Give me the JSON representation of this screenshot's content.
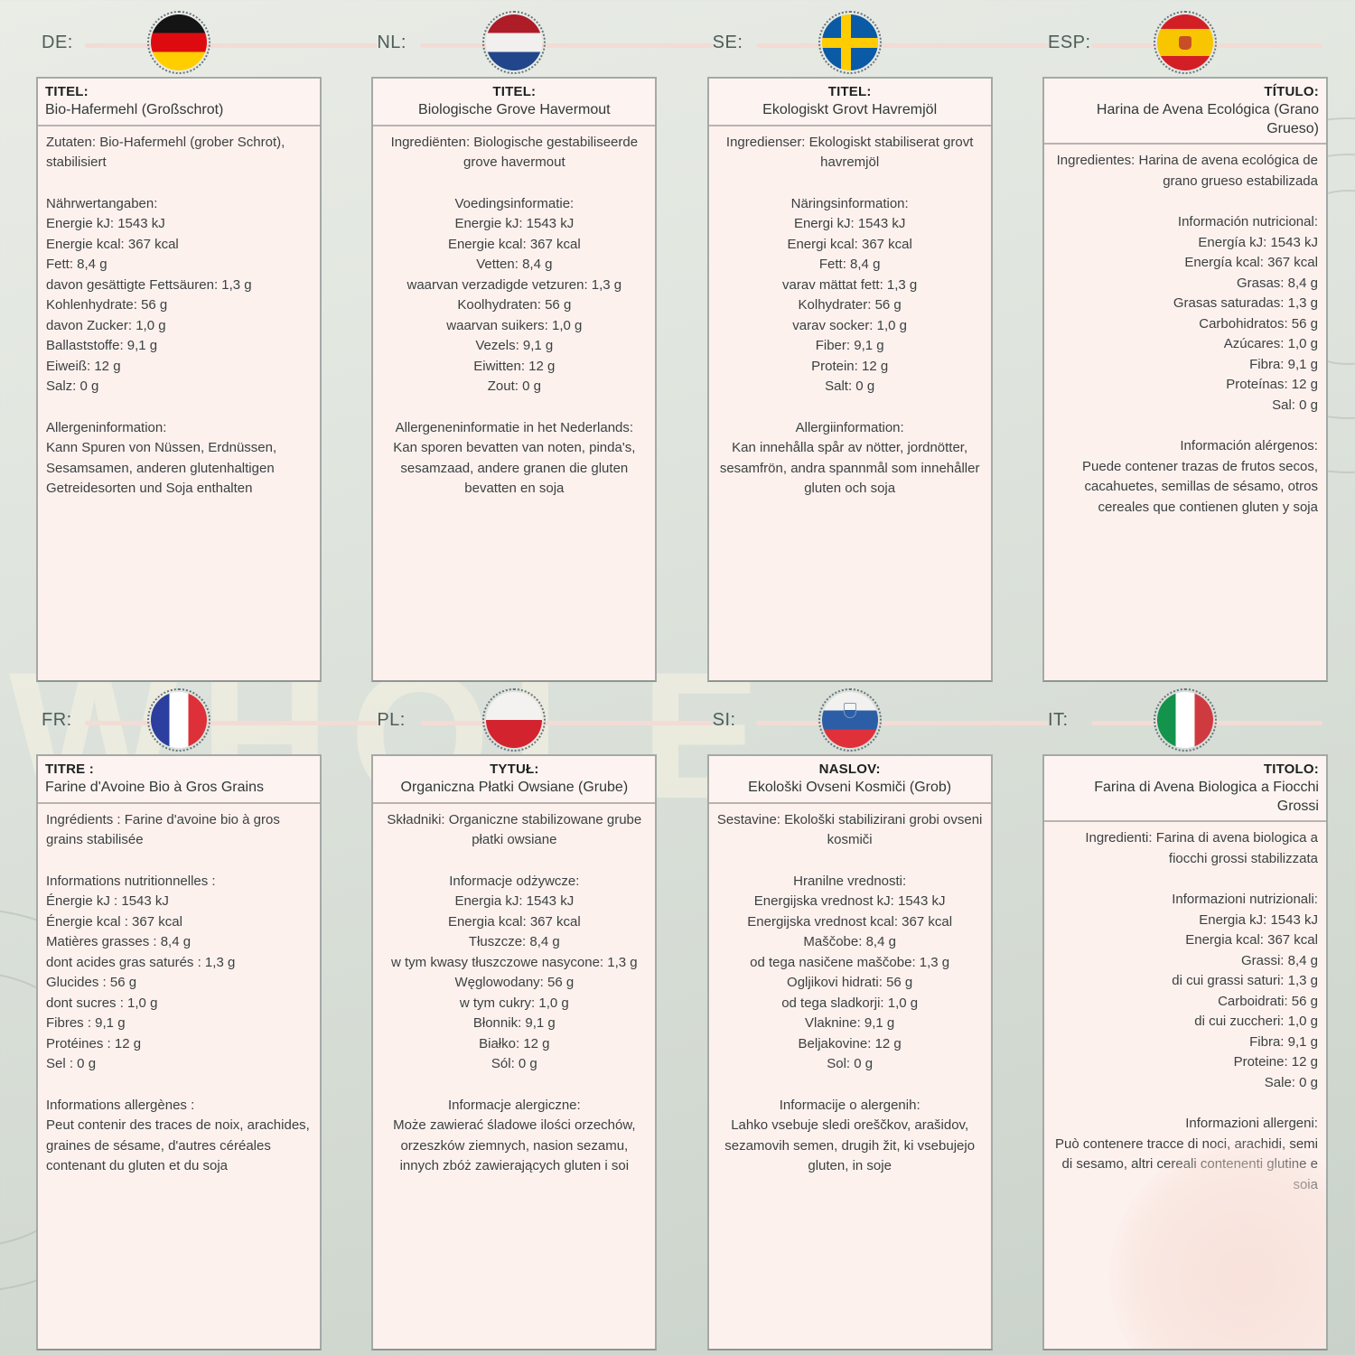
{
  "page": {
    "watermark": "WHOLE",
    "colors": {
      "background": "#dfe5de",
      "card_background": "#fdf1ee",
      "card_border": "#a4a9a6",
      "header_line": "#f2dcd5",
      "text": "#3b4141",
      "lang_label": "#4e5d59"
    }
  },
  "panels": [
    {
      "lang_label": "DE:",
      "flag_icon": "germany-flag",
      "align": "left",
      "title_label": "TITEL:",
      "title": "Bio-Hafermehl (Großschrot)",
      "ingredients": "Zutaten: Bio-Hafermehl (grober Schrot), stabilisiert",
      "nutrition_header": "Nährwertangaben:",
      "nutrition": [
        "Energie kJ: 1543 kJ",
        "Energie kcal: 367 kcal",
        "Fett: 8,4 g",
        "davon gesättigte Fettsäuren: 1,3 g",
        "Kohlenhydrate: 56 g",
        "davon Zucker: 1,0 g",
        "Ballaststoffe: 9,1 g",
        "Eiweiß: 12 g",
        "Salz: 0 g"
      ],
      "allergen_header": "Allergeninformation:",
      "allergens": "Kann Spuren von Nüssen, Erdnüssen, Sesamsamen, anderen glutenhaltigen Getreidesorten und Soja enthalten"
    },
    {
      "lang_label": "NL:",
      "flag_icon": "netherlands-flag",
      "align": "center",
      "title_label": "TITEL:",
      "title": "Biologische Grove Havermout",
      "ingredients": "Ingrediënten: Biologische gestabiliseerde grove havermout",
      "nutrition_header": "Voedingsinformatie:",
      "nutrition": [
        "Energie kJ: 1543 kJ",
        "Energie kcal: 367 kcal",
        "Vetten: 8,4 g",
        "waarvan verzadigde vetzuren: 1,3 g",
        "Koolhydraten: 56 g",
        "waarvan suikers: 1,0 g",
        "Vezels: 9,1 g",
        "Eiwitten: 12 g",
        "Zout: 0 g"
      ],
      "allergen_header": "Allergeneninformatie in het Nederlands:",
      "allergens": "Kan sporen bevatten van noten, pinda's, sesamzaad, andere granen die gluten bevatten en soja"
    },
    {
      "lang_label": "SE:",
      "flag_icon": "sweden-flag",
      "align": "center",
      "title_label": "TITEL:",
      "title": "Ekologiskt Grovt Havremjöl",
      "ingredients": "Ingredienser: Ekologiskt stabiliserat grovt havremjöl",
      "nutrition_header": "Näringsinformation:",
      "nutrition": [
        "Energi kJ: 1543 kJ",
        "Energi kcal: 367 kcal",
        "Fett: 8,4 g",
        "varav mättat fett: 1,3 g",
        "Kolhydrater: 56 g",
        "varav socker: 1,0 g",
        "Fiber: 9,1 g",
        "Protein: 12 g",
        "Salt: 0 g"
      ],
      "allergen_header": "Allergiinformation:",
      "allergens": "Kan innehålla spår av nötter, jordnötter, sesamfrön, andra spannmål som innehåller gluten och soja"
    },
    {
      "lang_label": "ESP:",
      "flag_icon": "spain-flag",
      "align": "right",
      "title_label": "TÍTULO:",
      "title": "Harina de Avena Ecológica (Grano Grueso)",
      "ingredients": "Ingredientes: Harina de avena ecológica de grano grueso estabilizada",
      "nutrition_header": "Información nutricional:",
      "nutrition": [
        "Energía kJ: 1543 kJ",
        "Energía kcal: 367 kcal",
        "Grasas: 8,4 g",
        "Grasas saturadas: 1,3 g",
        "Carbohidratos: 56 g",
        "Azúcares: 1,0 g",
        "Fibra: 9,1 g",
        "Proteínas: 12 g",
        "Sal: 0 g"
      ],
      "allergen_header": "Información alérgenos:",
      "allergens": "Puede contener trazas de frutos secos, cacahuetes, semillas de sésamo, otros cereales que contienen gluten y soja"
    },
    {
      "lang_label": "FR:",
      "flag_icon": "france-flag",
      "align": "left",
      "title_label": "TITRE :",
      "title": "Farine d'Avoine Bio à Gros Grains",
      "ingredients": "Ingrédients : Farine d'avoine bio à gros grains stabilisée",
      "nutrition_header": "Informations nutritionnelles :",
      "nutrition": [
        "Énergie kJ : 1543 kJ",
        "Énergie kcal : 367 kcal",
        "Matières grasses : 8,4 g",
        "dont acides gras saturés : 1,3 g",
        "Glucides : 56 g",
        "dont sucres : 1,0 g",
        "Fibres : 9,1 g",
        "Protéines : 12 g",
        "Sel : 0 g"
      ],
      "allergen_header": "Informations allergènes :",
      "allergens": "Peut contenir des traces de noix, arachides, graines de sésame, d'autres céréales contenant du gluten et du soja"
    },
    {
      "lang_label": "PL:",
      "flag_icon": "poland-flag",
      "align": "center",
      "title_label": "TYTUŁ:",
      "title": "Organiczna Płatki Owsiane (Grube)",
      "ingredients": "Składniki: Organiczne stabilizowane grube płatki owsiane",
      "nutrition_header": "Informacje odżywcze:",
      "nutrition": [
        "Energia kJ: 1543 kJ",
        "Energia kcal: 367 kcal",
        "Tłuszcze: 8,4 g",
        "w tym kwasy tłuszczowe nasycone: 1,3 g",
        "Węglowodany: 56 g",
        "w tym cukry: 1,0 g",
        "Błonnik: 9,1 g",
        "Białko: 12 g",
        "Sól: 0 g"
      ],
      "allergen_header": "Informacje alergiczne:",
      "allergens": "Może zawierać śladowe ilości orzechów, orzeszków ziemnych, nasion sezamu, innych zbóż zawierających gluten i soi"
    },
    {
      "lang_label": "SI:",
      "flag_icon": "slovenia-flag",
      "align": "center",
      "title_label": "NASLOV:",
      "title": "Ekološki Ovseni Kosmiči (Grob)",
      "ingredients": "Sestavine: Ekološki stabilizirani grobi ovseni kosmiči",
      "nutrition_header": "Hranilne vrednosti:",
      "nutrition": [
        "Energijska vrednost kJ: 1543 kJ",
        "Energijska vrednost kcal: 367 kcal",
        "Maščobe: 8,4 g",
        "od tega nasičene maščobe: 1,3 g",
        "Ogljikovi hidrati: 56 g",
        "od tega sladkorji: 1,0 g",
        "Vlaknine: 9,1 g",
        "Beljakovine: 12 g",
        "Sol: 0 g"
      ],
      "allergen_header": "Informacije o alergenih:",
      "allergens": "Lahko vsebuje sledi oreščkov, arašidov, sezamovih semen, drugih žit, ki vsebujejo gluten, in soje"
    },
    {
      "lang_label": "IT:",
      "flag_icon": "italy-flag",
      "align": "right",
      "title_label": "TITOLO:",
      "title": "Farina di Avena Biologica a Fiocchi Grossi",
      "ingredients": "Ingredienti: Farina di avena biologica a fiocchi grossi stabilizzata",
      "nutrition_header": "Informazioni nutrizionali:",
      "nutrition": [
        "Energia kJ: 1543 kJ",
        "Energia kcal: 367 kcal",
        "Grassi: 8,4 g",
        "di cui grassi saturi: 1,3 g",
        "Carboidrati: 56 g",
        "di cui zuccheri: 1,0 g",
        "Fibra: 9,1 g",
        "Proteine: 12 g",
        "Sale: 0 g"
      ],
      "allergen_header": "Informazioni allergeni:",
      "allergens": "Può contenere tracce di noci, arachidi, semi di sesamo, altri cereali contenenti glutine e soia"
    }
  ]
}
